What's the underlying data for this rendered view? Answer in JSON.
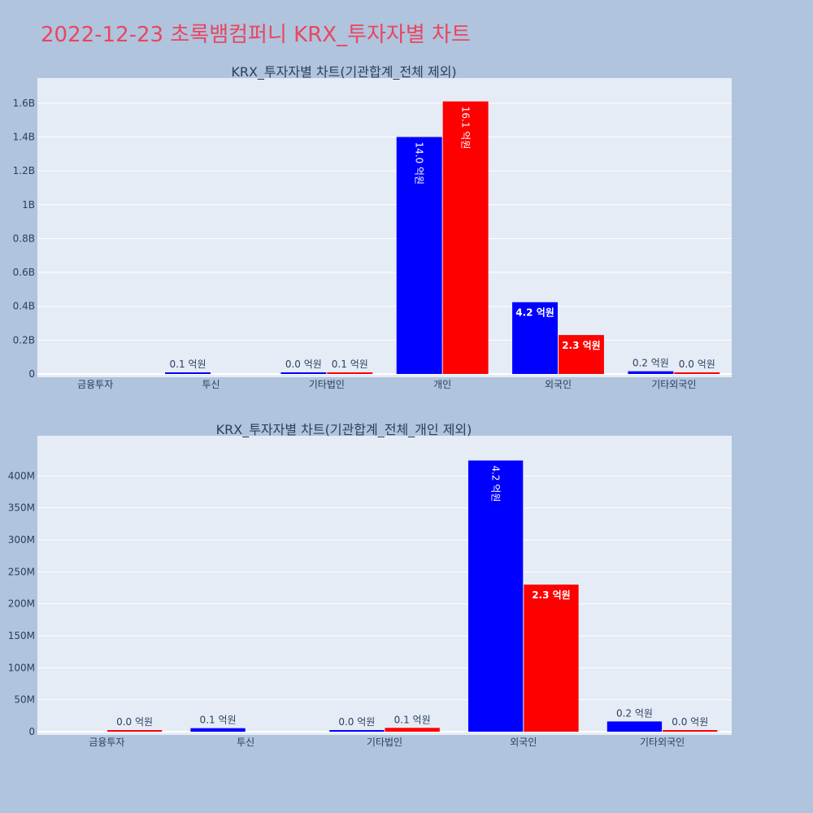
{
  "page": {
    "title": "2022-12-23 초록뱀컴퍼니 KRX_투자자별 차트",
    "title_color": "#e8475f",
    "background": "#b0c4de"
  },
  "chart_data": [
    {
      "type": "bar",
      "title": "KRX_투자자별 차트(기관합계_전체 제외)",
      "categories": [
        "금융투자",
        "투신",
        "기타법인",
        "개인",
        "외국인",
        "기타외국인"
      ],
      "series": [
        {
          "color": "#0000ff",
          "values": [
            0,
            7000000,
            3000000,
            1400000000,
            424000000,
            16000000
          ],
          "labels": [
            "",
            "0.1 억원",
            "0.0 억원",
            "14.0 억원",
            "4.2 억원",
            "0.2 억원"
          ]
        },
        {
          "color": "#ff0000",
          "values": [
            0,
            0,
            6000000,
            1610000000,
            230000000,
            2000000
          ],
          "labels": [
            "",
            "",
            "0.1 억원",
            "16.1 억원",
            "2.3 억원",
            "0.0 억원"
          ]
        }
      ],
      "ylim": [
        0,
        1700000000
      ],
      "yticks": [
        0,
        200000000,
        400000000,
        600000000,
        800000000,
        1000000000,
        1200000000,
        1400000000,
        1600000000
      ],
      "ytick_labels": [
        "0",
        "0.2B",
        "0.4B",
        "0.6B",
        "0.8B",
        "1B",
        "1.2B",
        "1.4B",
        "1.6B"
      ],
      "plot_background": "#e5ecf6",
      "grid": true
    },
    {
      "type": "bar",
      "title": "KRX_투자자별 차트(기관합계_전체_개인 제외)",
      "categories": [
        "금융투자",
        "투신",
        "기타법인",
        "외국인",
        "기타외국인"
      ],
      "series": [
        {
          "color": "#0000ff",
          "values": [
            0,
            5500000,
            2500000,
            424000000,
            16000000
          ],
          "labels": [
            "",
            "0.1 억원",
            "0.0 억원",
            "4.2 억원",
            "0.2 억원"
          ]
        },
        {
          "color": "#ff0000",
          "values": [
            1000000,
            0,
            6000000,
            230000000,
            2000000
          ],
          "labels": [
            "0.0 억원",
            "",
            "0.1 억원",
            "2.3 억원",
            "0.0 억원"
          ]
        }
      ],
      "ylim": [
        0,
        450000000
      ],
      "yticks": [
        0,
        50000000,
        100000000,
        150000000,
        200000000,
        250000000,
        300000000,
        350000000,
        400000000
      ],
      "ytick_labels": [
        "0",
        "50M",
        "100M",
        "150M",
        "200M",
        "250M",
        "300M",
        "350M",
        "400M"
      ],
      "plot_background": "#e5ecf6",
      "grid": true
    }
  ]
}
